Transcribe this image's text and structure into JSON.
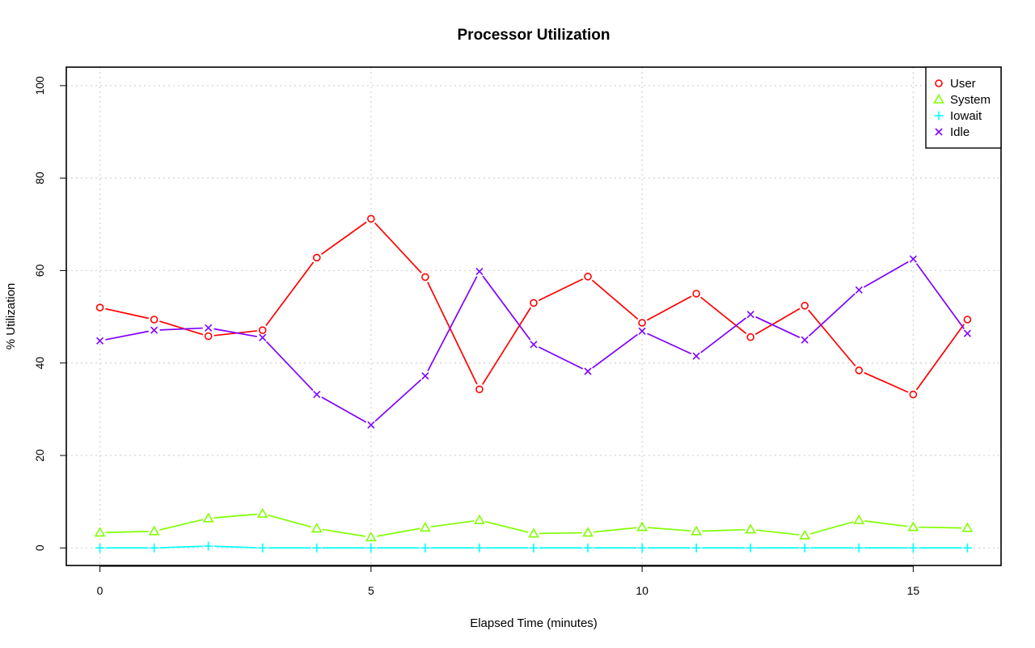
{
  "chart_data": {
    "type": "line",
    "title": "Processor Utilization",
    "xlabel": "Elapsed Time (minutes)",
    "ylabel": "% Utilization",
    "xlim": [
      -0.62,
      16.62
    ],
    "ylim": [
      -3.8,
      104
    ],
    "x_ticks": [
      0,
      5,
      10,
      15
    ],
    "y_ticks": [
      0,
      20,
      40,
      60,
      80,
      100
    ],
    "grid": true,
    "legend_position": "top-right",
    "x": [
      0,
      1,
      2,
      3,
      4,
      5,
      6,
      7,
      8,
      9,
      10,
      11,
      12,
      13,
      14,
      15,
      16
    ],
    "series": [
      {
        "name": "User",
        "color": "#ff0000",
        "marker": "circle",
        "values": [
          52.0,
          49.4,
          45.8,
          47.1,
          62.8,
          71.2,
          58.6,
          34.3,
          53.0,
          58.7,
          48.7,
          55.0,
          45.6,
          52.4,
          38.4,
          33.2,
          49.4
        ]
      },
      {
        "name": "System",
        "color": "#80ff00",
        "marker": "triangle",
        "values": [
          3.3,
          3.6,
          6.4,
          7.4,
          4.2,
          2.3,
          4.4,
          6.0,
          3.1,
          3.3,
          4.5,
          3.6,
          4.0,
          2.7,
          6.0,
          4.5,
          4.3
        ]
      },
      {
        "name": "Iowait",
        "color": "#00ffff",
        "marker": "plus",
        "values": [
          0.0,
          0.0,
          0.4,
          0.0,
          0.0,
          0.0,
          0.0,
          0.0,
          0.0,
          0.0,
          0.0,
          0.0,
          0.0,
          0.0,
          0.0,
          0.0,
          0.0
        ]
      },
      {
        "name": "Idle",
        "color": "#8000ff",
        "marker": "cross",
        "values": [
          44.8,
          47.1,
          47.6,
          45.5,
          33.2,
          26.6,
          37.2,
          59.8,
          44.0,
          38.2,
          46.9,
          41.5,
          50.5,
          45.0,
          55.8,
          62.5,
          46.4
        ]
      }
    ]
  }
}
